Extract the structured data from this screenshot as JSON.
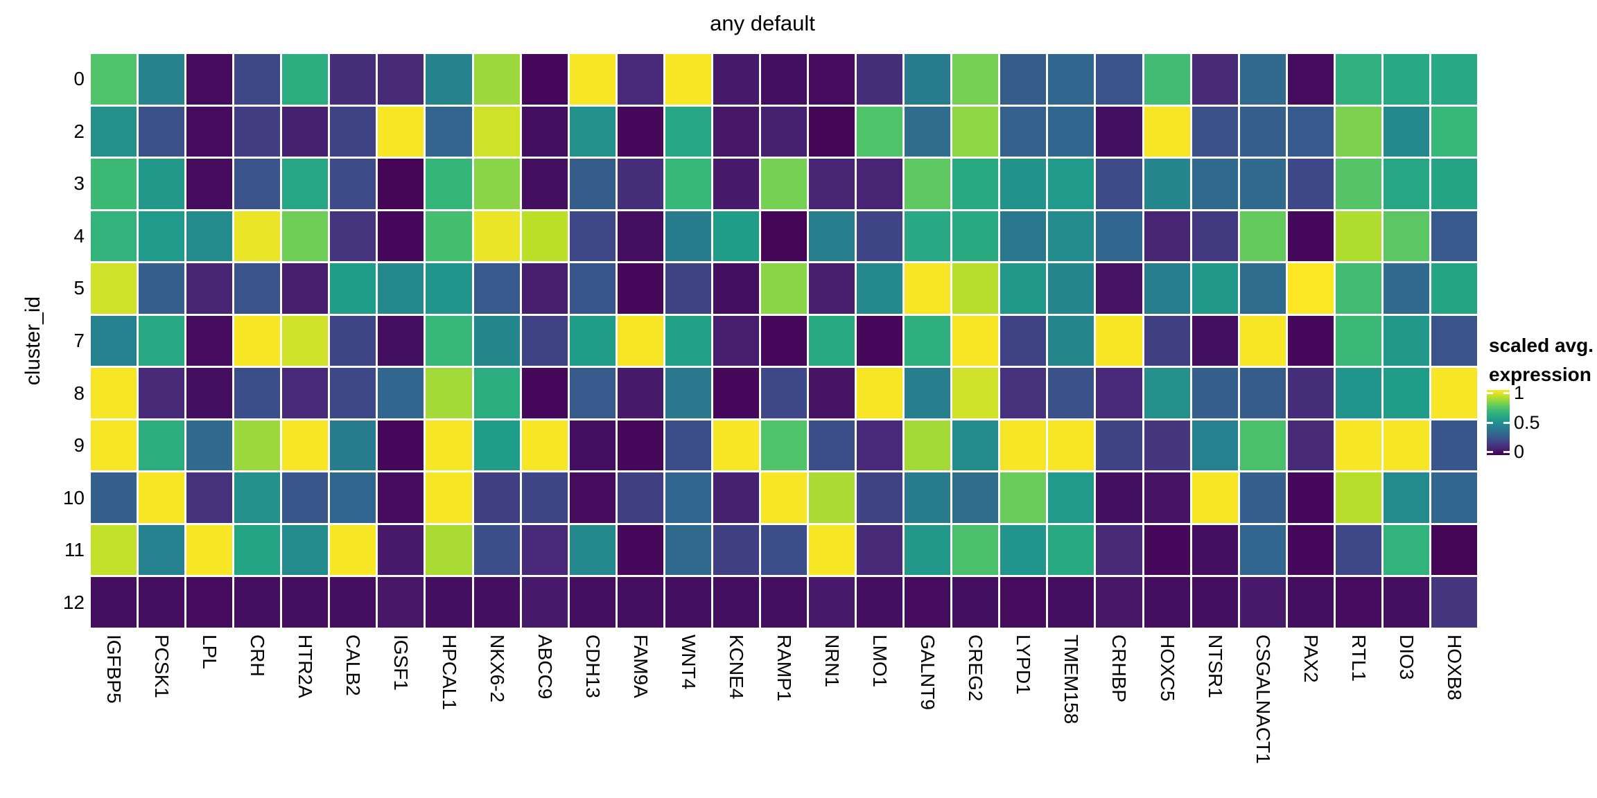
{
  "title": "any default",
  "y_axis": {
    "label": "cluster_id",
    "ticks": [
      "0",
      "2",
      "3",
      "4",
      "5",
      "7",
      "8",
      "9",
      "10",
      "11",
      "12"
    ]
  },
  "x_axis": {
    "ticks": [
      "IGFBP5",
      "PCSK1",
      "LPL",
      "CRH",
      "HTR2A",
      "CALB2",
      "IGSF1",
      "HPCAL1",
      "NKX6-2",
      "ABCC9",
      "CDH13",
      "FAM9A",
      "WNT4",
      "KCNE4",
      "RAMP1",
      "NRN1",
      "LMO1",
      "GALNT9",
      "CREG2",
      "LYPD1",
      "TMEM158",
      "CRHBP",
      "HOXC5",
      "NTSR1",
      "CSGALNACT1",
      "PAX2",
      "RTL1",
      "DIO3",
      "HOXB8"
    ]
  },
  "legend": {
    "title_line1": "scaled avg.",
    "title_line2": "expression",
    "ticks": [
      "1",
      "0.5",
      "0"
    ]
  },
  "colors": {
    "background": "#ffffff",
    "text": "#000000",
    "tile_border": "#ffffff",
    "viridis": [
      "#440154",
      "#482878",
      "#3e4989",
      "#31688e",
      "#26828e",
      "#1f9e89",
      "#35b779",
      "#6ece58",
      "#b5de2b",
      "#fde725"
    ]
  },
  "chart_data": {
    "type": "heatmap",
    "title": "any default",
    "xlabel": "",
    "ylabel": "cluster_id",
    "legend_title": "scaled avg. expression",
    "colorscale": "viridis",
    "zlim": [
      0,
      1
    ],
    "legend_tick_values": [
      1,
      0.5,
      0
    ],
    "x": [
      "IGFBP5",
      "PCSK1",
      "LPL",
      "CRH",
      "HTR2A",
      "CALB2",
      "IGSF1",
      "HPCAL1",
      "NKX6-2",
      "ABCC9",
      "CDH13",
      "FAM9A",
      "WNT4",
      "KCNE4",
      "RAMP1",
      "NRN1",
      "LMO1",
      "GALNT9",
      "CREG2",
      "LYPD1",
      "TMEM158",
      "CRHBP",
      "HOXC5",
      "NTSR1",
      "CSGALNACT1",
      "PAX2",
      "RTL1",
      "DIO3",
      "HOXB8"
    ],
    "y": [
      "0",
      "2",
      "3",
      "4",
      "5",
      "7",
      "8",
      "9",
      "10",
      "11",
      "12"
    ],
    "values": [
      [
        0.72,
        0.45,
        0.03,
        0.22,
        0.62,
        0.13,
        0.12,
        0.45,
        0.85,
        0.02,
        0.99,
        0.11,
        0.99,
        0.07,
        0.04,
        0.03,
        0.13,
        0.42,
        0.79,
        0.29,
        0.33,
        0.26,
        0.69,
        0.12,
        0.34,
        0.03,
        0.64,
        0.6,
        0.6
      ],
      [
        0.5,
        0.25,
        0.03,
        0.18,
        0.09,
        0.2,
        0.99,
        0.32,
        0.93,
        0.04,
        0.5,
        0.02,
        0.59,
        0.06,
        0.09,
        0.01,
        0.72,
        0.35,
        0.83,
        0.31,
        0.33,
        0.04,
        0.99,
        0.25,
        0.3,
        0.28,
        0.8,
        0.47,
        0.67
      ],
      [
        0.68,
        0.53,
        0.03,
        0.26,
        0.59,
        0.23,
        0.01,
        0.66,
        0.82,
        0.04,
        0.29,
        0.13,
        0.67,
        0.07,
        0.79,
        0.1,
        0.1,
        0.75,
        0.61,
        0.51,
        0.54,
        0.23,
        0.46,
        0.34,
        0.34,
        0.22,
        0.73,
        0.59,
        0.58
      ],
      [
        0.65,
        0.54,
        0.48,
        0.97,
        0.78,
        0.15,
        0.02,
        0.7,
        0.97,
        0.9,
        0.22,
        0.04,
        0.42,
        0.55,
        0.01,
        0.43,
        0.21,
        0.6,
        0.61,
        0.4,
        0.48,
        0.33,
        0.1,
        0.17,
        0.76,
        0.02,
        0.88,
        0.74,
        0.28
      ],
      [
        0.93,
        0.3,
        0.1,
        0.26,
        0.08,
        0.55,
        0.47,
        0.52,
        0.28,
        0.08,
        0.27,
        0.02,
        0.2,
        0.04,
        0.82,
        0.08,
        0.47,
        0.99,
        0.89,
        0.53,
        0.46,
        0.05,
        0.43,
        0.53,
        0.35,
        1.0,
        0.69,
        0.34,
        0.58
      ],
      [
        0.44,
        0.6,
        0.03,
        0.99,
        0.93,
        0.21,
        0.04,
        0.67,
        0.46,
        0.2,
        0.55,
        0.99,
        0.57,
        0.08,
        0.02,
        0.61,
        0.02,
        0.63,
        0.99,
        0.2,
        0.46,
        0.99,
        0.19,
        0.04,
        0.99,
        0.02,
        0.68,
        0.53,
        0.26
      ],
      [
        0.99,
        0.12,
        0.04,
        0.24,
        0.11,
        0.22,
        0.33,
        0.86,
        0.62,
        0.02,
        0.28,
        0.07,
        0.4,
        0.02,
        0.22,
        0.05,
        0.99,
        0.43,
        0.93,
        0.14,
        0.25,
        0.11,
        0.5,
        0.3,
        0.29,
        0.13,
        0.52,
        0.55,
        0.99
      ],
      [
        0.99,
        0.62,
        0.34,
        0.85,
        0.99,
        0.42,
        0.02,
        0.99,
        0.55,
        0.99,
        0.04,
        0.02,
        0.24,
        0.99,
        0.72,
        0.24,
        0.11,
        0.86,
        0.48,
        0.99,
        0.99,
        0.2,
        0.16,
        0.44,
        0.71,
        0.12,
        0.99,
        0.99,
        0.27
      ],
      [
        0.3,
        0.99,
        0.14,
        0.5,
        0.27,
        0.33,
        0.03,
        0.99,
        0.19,
        0.21,
        0.03,
        0.19,
        0.33,
        0.09,
        0.99,
        0.87,
        0.2,
        0.42,
        0.35,
        0.77,
        0.54,
        0.04,
        0.05,
        0.99,
        0.3,
        0.02,
        0.89,
        0.48,
        0.33
      ],
      [
        0.91,
        0.44,
        0.99,
        0.58,
        0.48,
        0.99,
        0.07,
        0.87,
        0.24,
        0.11,
        0.47,
        0.02,
        0.34,
        0.19,
        0.24,
        0.99,
        0.12,
        0.53,
        0.71,
        0.52,
        0.61,
        0.12,
        0.02,
        0.04,
        0.33,
        0.02,
        0.22,
        0.65,
        0.01
      ],
      [
        0.04,
        0.04,
        0.03,
        0.04,
        0.04,
        0.04,
        0.06,
        0.04,
        0.04,
        0.07,
        0.04,
        0.04,
        0.04,
        0.04,
        0.04,
        0.07,
        0.04,
        0.03,
        0.04,
        0.03,
        0.04,
        0.06,
        0.04,
        0.04,
        0.07,
        0.04,
        0.03,
        0.04,
        0.16
      ]
    ]
  }
}
